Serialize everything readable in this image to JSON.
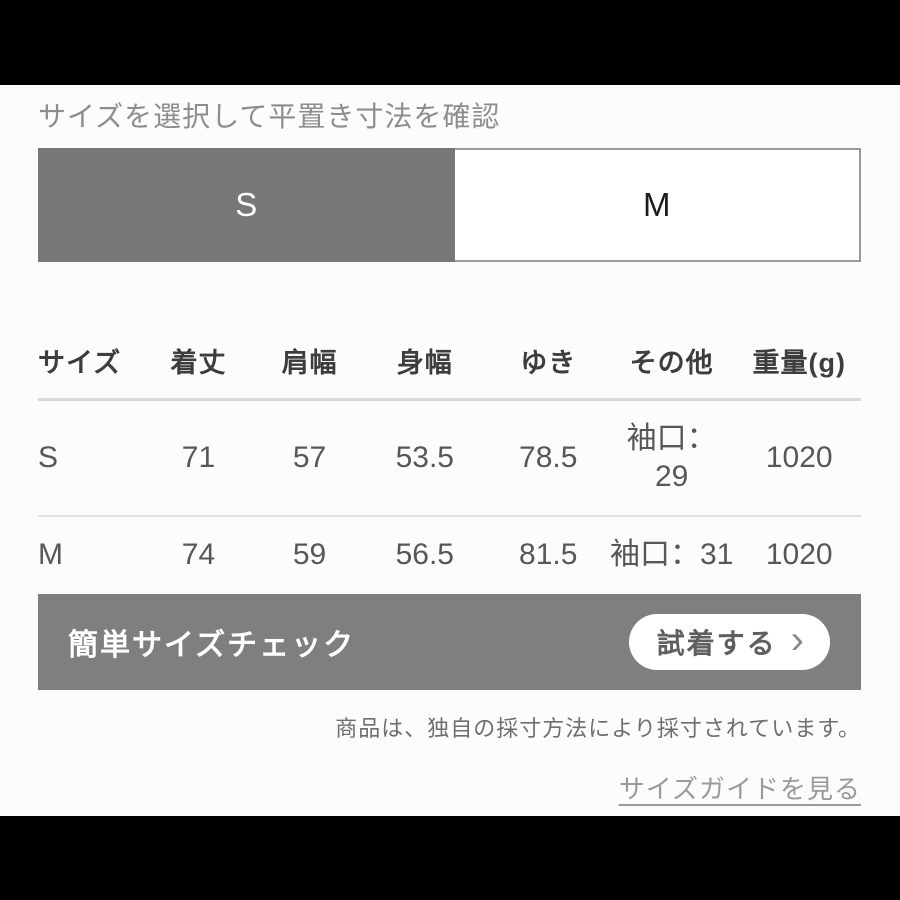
{
  "colors": {
    "tab_selected_bg": "#777777",
    "banner_bg": "#7f7f7f",
    "link": "#9a9a9a"
  },
  "header": {
    "title": "サイズを選択して平置き寸法を確認"
  },
  "size_selector": {
    "tabs": [
      {
        "label": "S",
        "selected": true
      },
      {
        "label": "M",
        "selected": false
      }
    ]
  },
  "size_table": {
    "columns": [
      "サイズ",
      "着丈",
      "肩幅",
      "身幅",
      "ゆき",
      "その他",
      "重量(g)"
    ],
    "rows": [
      [
        "S",
        "71",
        "57",
        "53.5",
        "78.5",
        "袖口：\n29",
        "1020"
      ],
      [
        "M",
        "74",
        "59",
        "56.5",
        "81.5",
        "袖口：31",
        "1020"
      ]
    ]
  },
  "size_check_banner": {
    "label": "簡単サイズチェック",
    "button_label": "試着する",
    "chevron_icon": "›"
  },
  "footer": {
    "measurement_note": "商品は、独自の採寸方法により採寸されています。",
    "size_guide_link": "サイズガイドを見る"
  }
}
